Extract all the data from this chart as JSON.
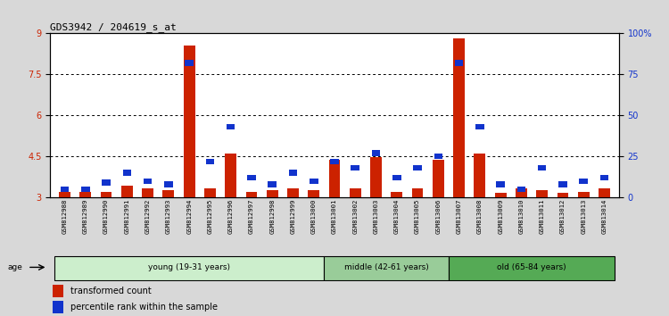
{
  "title": "GDS3942 / 204619_s_at",
  "samples": [
    "GSM812988",
    "GSM812989",
    "GSM812990",
    "GSM812991",
    "GSM812992",
    "GSM812993",
    "GSM812994",
    "GSM812995",
    "GSM812996",
    "GSM812997",
    "GSM812998",
    "GSM812999",
    "GSM813000",
    "GSM813001",
    "GSM813002",
    "GSM813003",
    "GSM813004",
    "GSM813005",
    "GSM813006",
    "GSM813007",
    "GSM813008",
    "GSM813009",
    "GSM813010",
    "GSM813011",
    "GSM813012",
    "GSM813013",
    "GSM813014"
  ],
  "red_values": [
    3.2,
    3.2,
    3.22,
    3.42,
    3.32,
    3.28,
    8.55,
    3.32,
    4.6,
    3.22,
    3.28,
    3.32,
    3.28,
    4.38,
    3.32,
    4.48,
    3.22,
    3.35,
    4.38,
    8.82,
    4.62,
    3.18,
    3.32,
    3.28,
    3.18,
    3.22,
    3.32
  ],
  "blue_values": [
    5,
    5,
    9,
    15,
    10,
    8,
    82,
    22,
    43,
    12,
    8,
    15,
    10,
    22,
    18,
    27,
    12,
    18,
    25,
    82,
    43,
    8,
    5,
    18,
    8,
    10,
    12
  ],
  "ylim_left": [
    3,
    9
  ],
  "ylim_right": [
    0,
    100
  ],
  "yticks_left": [
    3,
    4.5,
    6,
    7.5,
    9
  ],
  "ytick_labels_left": [
    "3",
    "4.5",
    "6",
    "7.5",
    "9"
  ],
  "yticks_right": [
    0,
    25,
    50,
    75,
    100
  ],
  "ytick_labels_right": [
    "0",
    "25",
    "50",
    "75",
    "100%"
  ],
  "age_groups": [
    {
      "label": "young (19-31 years)",
      "start": 0,
      "end": 13,
      "color": "#d4f0d4"
    },
    {
      "label": "middle (42-61 years)",
      "start": 13,
      "end": 19,
      "color": "#aaddaa"
    },
    {
      "label": "old (65-84 years)",
      "start": 19,
      "end": 27,
      "color": "#66bb66"
    }
  ],
  "red_color": "#cc2200",
  "blue_color": "#1133cc",
  "background_color": "#d8d8d8",
  "plot_bg_color": "#ffffff",
  "legend_red": "transformed count",
  "legend_blue": "percentile rank within the sample"
}
